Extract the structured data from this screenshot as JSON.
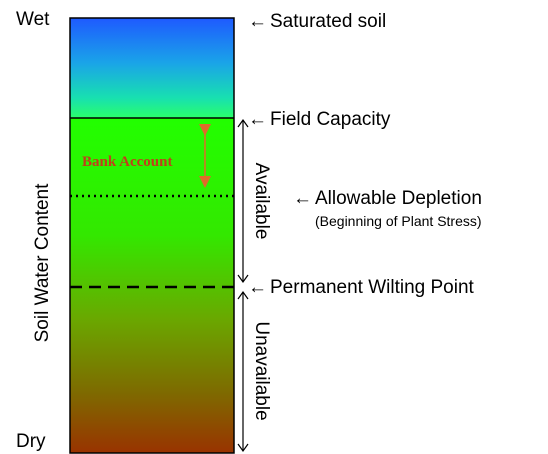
{
  "diagram": {
    "labels": {
      "wet": "Wet",
      "dry": "Dry",
      "y_axis": "Soil Water Content",
      "bank_account": "Bank Account",
      "available": "Available",
      "unavailable": "Unavailable"
    },
    "levels": {
      "saturated": "Saturated soil",
      "field_capacity": "Field Capacity",
      "allowable_depletion": "Allowable Depletion",
      "allowable_depletion_note": "(Beginning of Plant Stress)",
      "permanent_wilting_point": "Permanent Wilting Point"
    },
    "arrow_glyph": "←",
    "colors": {
      "wet_top": "#1a56ff",
      "wet_mid": "#18d6b8",
      "field_band": "#22ff00",
      "mid_green": "#55c000",
      "dry_bottom": "#9a3500",
      "bank_account_text": "#c0401a",
      "bank_account_arrow": "#e06a2a"
    }
  }
}
